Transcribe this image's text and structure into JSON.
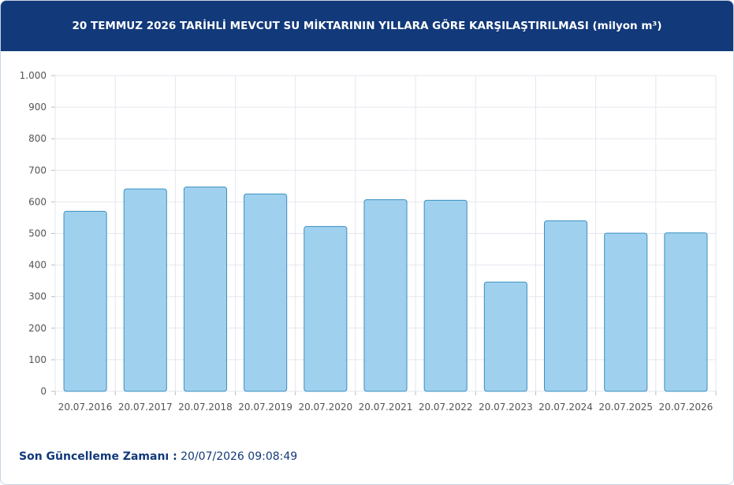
{
  "header": {
    "title": "20 TEMMUZ 2026 TARİHLİ MEVCUT SU MİKTARININ YILLARA GÖRE KARŞILAŞTIRILMASI (milyon m³)"
  },
  "footer": {
    "label": "Son Güncelleme Zamanı :",
    "value": "20/07/2026 09:08:49"
  },
  "colors": {
    "header_bg": "#12397a",
    "bar_fill": "#9fd1ee",
    "bar_stroke": "#3d8fc2",
    "grid": "#e3e7ee",
    "tick_text": "#555555",
    "footer_text": "#12397a"
  },
  "chart_data": {
    "type": "bar",
    "title": "20 TEMMUZ 2026 TARİHLİ MEVCUT SU MİKTARININ YILLARA GÖRE KARŞILAŞTIRILMASI (milyon m³)",
    "xlabel": "",
    "ylabel": "",
    "ylim": [
      0,
      1000
    ],
    "yticks": [
      0,
      100,
      200,
      300,
      400,
      500,
      600,
      700,
      800,
      900,
      1000
    ],
    "ytick_labels": [
      "0",
      "100",
      "200",
      "300",
      "400",
      "500",
      "600",
      "700",
      "800",
      "900",
      "1.000"
    ],
    "grid": true,
    "legend": "none",
    "categories": [
      "20.07.2016",
      "20.07.2017",
      "20.07.2018",
      "20.07.2019",
      "20.07.2020",
      "20.07.2021",
      "20.07.2022",
      "20.07.2023",
      "20.07.2024",
      "20.07.2025",
      "20.07.2026"
    ],
    "values": [
      570,
      641,
      647,
      625,
      522,
      607,
      605,
      346,
      540,
      501,
      502
    ]
  }
}
